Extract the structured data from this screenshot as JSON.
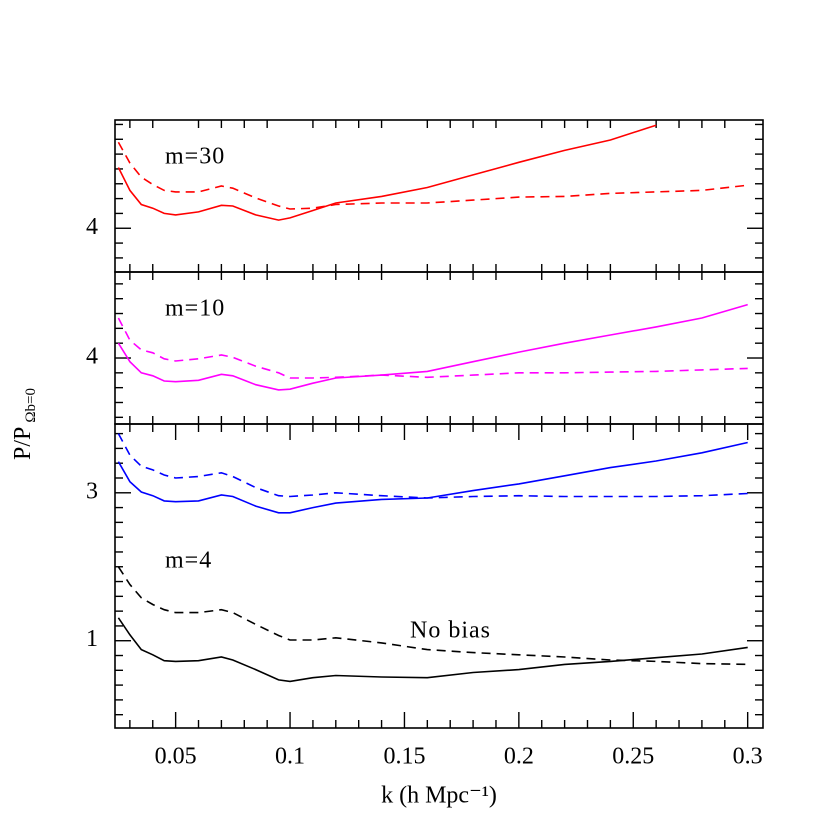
{
  "chart_data": [
    {
      "type": "line",
      "annotations": [
        "m=30"
      ],
      "x": [
        0.025,
        0.03,
        0.035,
        0.04,
        0.045,
        0.05,
        0.06,
        0.07,
        0.075,
        0.085,
        0.095,
        0.1,
        0.11,
        0.12,
        0.14,
        0.16,
        0.18,
        0.2,
        0.22,
        0.24,
        0.26,
        0.28,
        0.3
      ],
      "xlim": [
        0.0235,
        0.3067
      ],
      "xminor": [
        0.03,
        0.04,
        0.06,
        0.07,
        0.08,
        0.09,
        0.11,
        0.12,
        0.13,
        0.14,
        0.16,
        0.17,
        0.18,
        0.19,
        0.21,
        0.22,
        0.23,
        0.24,
        0.26,
        0.27,
        0.28,
        0.29
      ],
      "ylim": [
        3.41,
        5.46
      ],
      "yticks": [
        4
      ],
      "yminor": [
        3.6,
        3.8,
        4.2,
        4.4,
        4.6,
        4.8,
        5.0,
        5.2,
        5.4
      ],
      "series": [
        {
          "color": "#ff0000",
          "dash": false,
          "values": [
            4.82,
            4.51,
            4.32,
            4.27,
            4.2,
            4.18,
            4.22,
            4.31,
            4.3,
            4.18,
            4.11,
            4.14,
            4.24,
            4.34,
            4.43,
            4.55,
            4.72,
            4.89,
            5.05,
            5.19,
            5.39,
            null,
            null
          ]
        },
        {
          "color": "#ff0000",
          "dash": true,
          "values": [
            5.16,
            4.88,
            4.69,
            4.59,
            4.51,
            4.49,
            4.49,
            4.57,
            4.54,
            4.41,
            4.3,
            4.26,
            4.27,
            4.32,
            4.34,
            4.34,
            4.38,
            4.42,
            4.43,
            4.47,
            4.49,
            4.51,
            4.58
          ]
        }
      ]
    },
    {
      "type": "line",
      "annotations": [
        "m=10"
      ],
      "ylabel": "P/P",
      "ylabel_sub": "Ωb=0",
      "x": [
        0.025,
        0.03,
        0.035,
        0.04,
        0.045,
        0.05,
        0.06,
        0.07,
        0.075,
        0.085,
        0.095,
        0.1,
        0.11,
        0.12,
        0.14,
        0.16,
        0.18,
        0.2,
        0.22,
        0.24,
        0.26,
        0.28,
        0.3
      ],
      "xlim": [
        0.0235,
        0.3067
      ],
      "xminor": [
        0.03,
        0.04,
        0.06,
        0.07,
        0.08,
        0.09,
        0.11,
        0.12,
        0.13,
        0.14,
        0.16,
        0.17,
        0.18,
        0.19,
        0.21,
        0.22,
        0.23,
        0.24,
        0.26,
        0.27,
        0.28,
        0.29
      ],
      "ylim": [
        3.11,
        5.16
      ],
      "yticks": [
        4
      ],
      "yminor": [
        3.2,
        3.4,
        3.6,
        3.8,
        4.2,
        4.4,
        4.6,
        4.8,
        5.0
      ],
      "series": [
        {
          "color": "#ff00ff",
          "dash": false,
          "values": [
            4.2,
            3.95,
            3.8,
            3.76,
            3.69,
            3.68,
            3.7,
            3.78,
            3.76,
            3.64,
            3.57,
            3.58,
            3.66,
            3.73,
            3.77,
            3.82,
            3.95,
            4.08,
            4.2,
            4.31,
            4.42,
            4.54,
            4.72
          ]
        },
        {
          "color": "#ff00ff",
          "dash": true,
          "values": [
            4.54,
            4.24,
            4.11,
            4.07,
            3.99,
            3.96,
            3.99,
            4.04,
            4.01,
            3.89,
            3.8,
            3.73,
            3.73,
            3.74,
            3.77,
            3.74,
            3.77,
            3.8,
            3.8,
            3.81,
            3.82,
            3.84,
            3.86
          ]
        }
      ]
    },
    {
      "type": "line",
      "annotations": [
        "m=4",
        "No bias"
      ],
      "xlabel": "k (h Mpc⁻¹)",
      "x": [
        0.025,
        0.03,
        0.035,
        0.04,
        0.045,
        0.05,
        0.06,
        0.07,
        0.075,
        0.085,
        0.095,
        0.1,
        0.11,
        0.12,
        0.14,
        0.16,
        0.18,
        0.2,
        0.22,
        0.24,
        0.26,
        0.28,
        0.3
      ],
      "xlim": [
        0.0235,
        0.3067
      ],
      "xticks": [
        0.05,
        0.1,
        0.15,
        0.2,
        0.25,
        0.3
      ],
      "xminor": [
        0.03,
        0.04,
        0.06,
        0.07,
        0.08,
        0.09,
        0.11,
        0.12,
        0.13,
        0.14,
        0.16,
        0.17,
        0.18,
        0.19,
        0.21,
        0.22,
        0.23,
        0.24,
        0.26,
        0.27,
        0.28,
        0.29
      ],
      "ylim": [
        -0.18,
        3.93
      ],
      "yticks": [
        1,
        3
      ],
      "yminor": [
        0,
        0.2,
        0.4,
        0.6,
        0.8,
        1.2,
        1.4,
        1.6,
        1.8,
        2.0,
        2.2,
        2.4,
        2.6,
        2.8,
        3.2,
        3.4,
        3.6,
        3.8
      ],
      "series": [
        {
          "color": "#0000ff",
          "dash": false,
          "values": [
            3.42,
            3.15,
            3.01,
            2.96,
            2.89,
            2.88,
            2.89,
            2.97,
            2.95,
            2.82,
            2.73,
            2.73,
            2.8,
            2.86,
            2.91,
            2.93,
            3.03,
            3.12,
            3.23,
            3.34,
            3.43,
            3.54,
            3.68
          ]
        },
        {
          "color": "#0000ff",
          "dash": true,
          "values": [
            3.8,
            3.51,
            3.36,
            3.31,
            3.24,
            3.2,
            3.22,
            3.27,
            3.22,
            3.07,
            2.96,
            2.95,
            2.97,
            3.0,
            2.96,
            2.93,
            2.95,
            2.96,
            2.95,
            2.95,
            2.95,
            2.96,
            2.99
          ]
        },
        {
          "color": "#000000",
          "dash": false,
          "values": [
            1.31,
            1.08,
            0.88,
            0.81,
            0.73,
            0.72,
            0.73,
            0.78,
            0.74,
            0.61,
            0.47,
            0.45,
            0.5,
            0.53,
            0.51,
            0.5,
            0.57,
            0.61,
            0.68,
            0.72,
            0.77,
            0.82,
            0.91
          ]
        },
        {
          "color": "#000000",
          "dash": true,
          "values": [
            2.0,
            1.76,
            1.58,
            1.49,
            1.42,
            1.38,
            1.38,
            1.42,
            1.38,
            1.22,
            1.07,
            1.01,
            1.01,
            1.04,
            0.97,
            0.88,
            0.84,
            0.81,
            0.78,
            0.74,
            0.72,
            0.69,
            0.68
          ]
        }
      ]
    }
  ]
}
